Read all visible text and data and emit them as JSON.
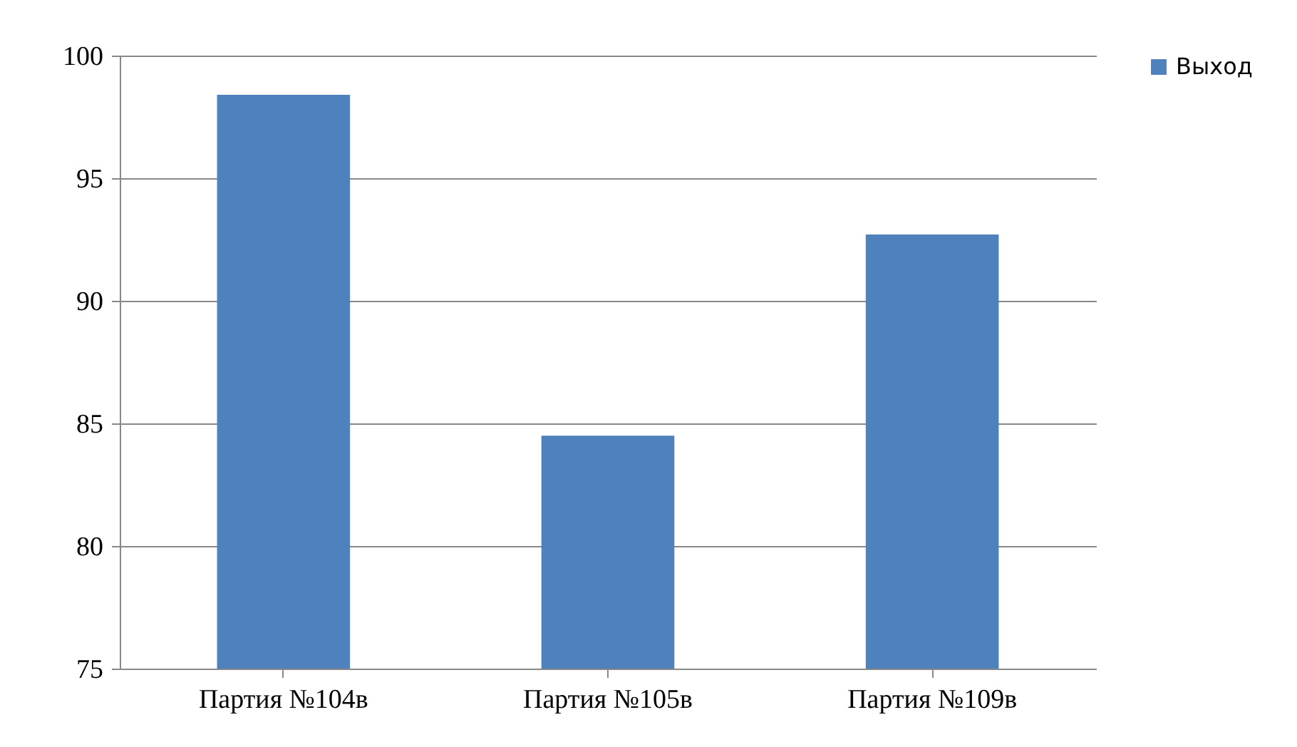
{
  "chart_data": {
    "type": "bar",
    "categories": [
      "Партия №104в",
      "Партия №105в",
      "Партия №109в"
    ],
    "series": [
      {
        "name": "Выход",
        "color": "#4f81bd",
        "values": [
          98.4,
          84.5,
          92.7
        ]
      }
    ],
    "ylim": [
      75,
      100
    ],
    "yticks": [
      75,
      80,
      85,
      90,
      95,
      100
    ],
    "grid": "y",
    "legend": "right"
  }
}
